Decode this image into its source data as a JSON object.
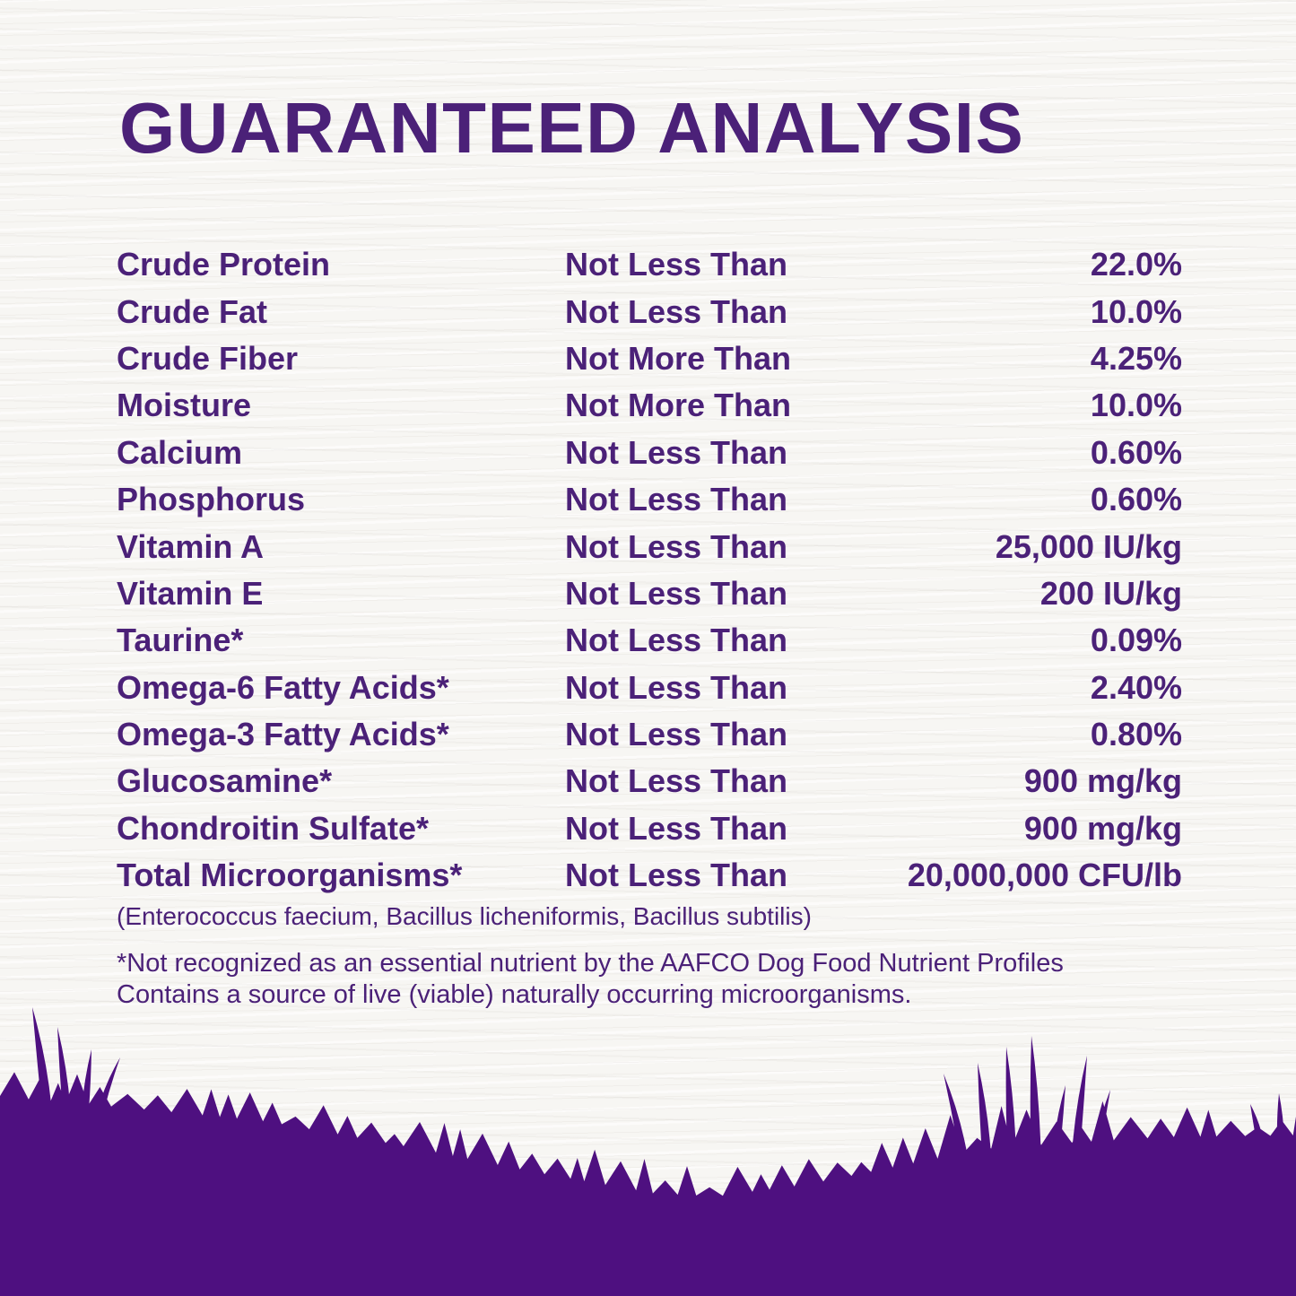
{
  "title": "GUARANTEED ANALYSIS",
  "colors": {
    "text_purple": "#4b2178",
    "grass_purple": "#4e1080",
    "background": "#f7f6f3"
  },
  "table": {
    "rows": [
      {
        "name": "Crude Protein",
        "condition": "Not Less Than",
        "value": "22.0%"
      },
      {
        "name": "Crude Fat",
        "condition": "Not Less Than",
        "value": "10.0%"
      },
      {
        "name": "Crude Fiber",
        "condition": "Not More Than",
        "value": "4.25%"
      },
      {
        "name": "Moisture",
        "condition": "Not More Than",
        "value": "10.0%"
      },
      {
        "name": "Calcium",
        "condition": "Not Less Than",
        "value": "0.60%"
      },
      {
        "name": "Phosphorus",
        "condition": "Not Less Than",
        "value": "0.60%"
      },
      {
        "name": "Vitamin A",
        "condition": "Not Less Than",
        "value": "25,000 IU/kg"
      },
      {
        "name": "Vitamin E",
        "condition": "Not Less Than",
        "value": "200 IU/kg"
      },
      {
        "name": "Taurine*",
        "condition": "Not Less Than",
        "value": "0.09%"
      },
      {
        "name": "Omega-6 Fatty Acids*",
        "condition": "Not Less Than",
        "value": "2.40%"
      },
      {
        "name": "Omega-3 Fatty Acids*",
        "condition": "Not Less Than",
        "value": "0.80%"
      },
      {
        "name": "Glucosamine*",
        "condition": "Not Less Than",
        "value": "900 mg/kg"
      },
      {
        "name": "Chondroitin Sulfate*",
        "condition": "Not Less Than",
        "value": "900 mg/kg"
      },
      {
        "name": "Total Microorganisms*",
        "condition": "Not Less Than",
        "value": "20,000,000 CFU/lb"
      }
    ]
  },
  "micro_note": "(Enterococcus faecium, Bacillus licheniformis, Bacillus subtilis)",
  "footnote": {
    "line1": "*Not recognized as an essential nutrient by the AAFCO Dog Food Nutrient Profiles",
    "line2": "Contains a source of live (viable) naturally occurring microorganisms."
  }
}
